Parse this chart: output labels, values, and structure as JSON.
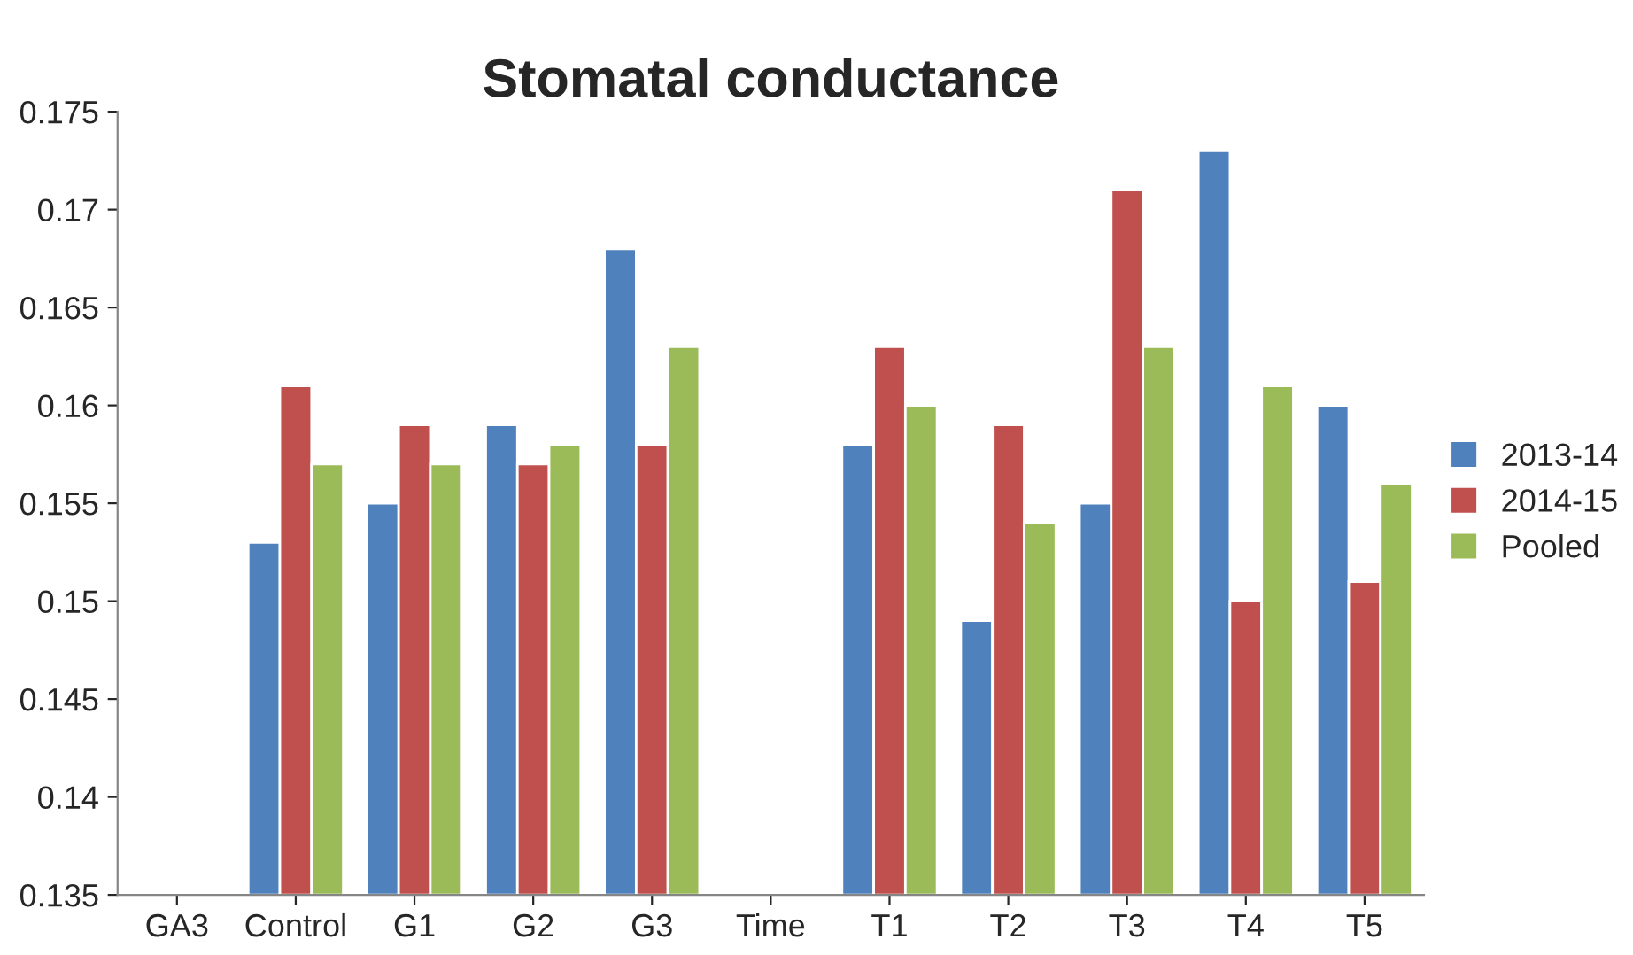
{
  "chart_data": {
    "type": "bar",
    "title": "Stomatal conductance",
    "categories": [
      "GA3",
      "Control",
      "G1",
      "G2",
      "G3",
      "Time",
      "T1",
      "T2",
      "T3",
      "T4",
      "T5"
    ],
    "series": [
      {
        "name": "2013-14",
        "color": "#4f81bd",
        "values": [
          null,
          0.153,
          0.155,
          0.159,
          0.168,
          null,
          0.158,
          0.149,
          0.155,
          0.173,
          0.16
        ]
      },
      {
        "name": "2014-15",
        "color": "#c0504d",
        "values": [
          null,
          0.161,
          0.159,
          0.157,
          0.158,
          null,
          0.163,
          0.159,
          0.171,
          0.15,
          0.151
        ]
      },
      {
        "name": "Pooled",
        "color": "#9bbb59",
        "values": [
          null,
          0.157,
          0.157,
          0.158,
          0.163,
          null,
          0.16,
          0.154,
          0.163,
          0.161,
          0.156
        ]
      }
    ],
    "ylim": [
      0.135,
      0.175
    ],
    "yticks": [
      0.135,
      0.14,
      0.145,
      0.15,
      0.155,
      0.16,
      0.165,
      0.17,
      0.175
    ],
    "grid": false,
    "legend": "right"
  }
}
